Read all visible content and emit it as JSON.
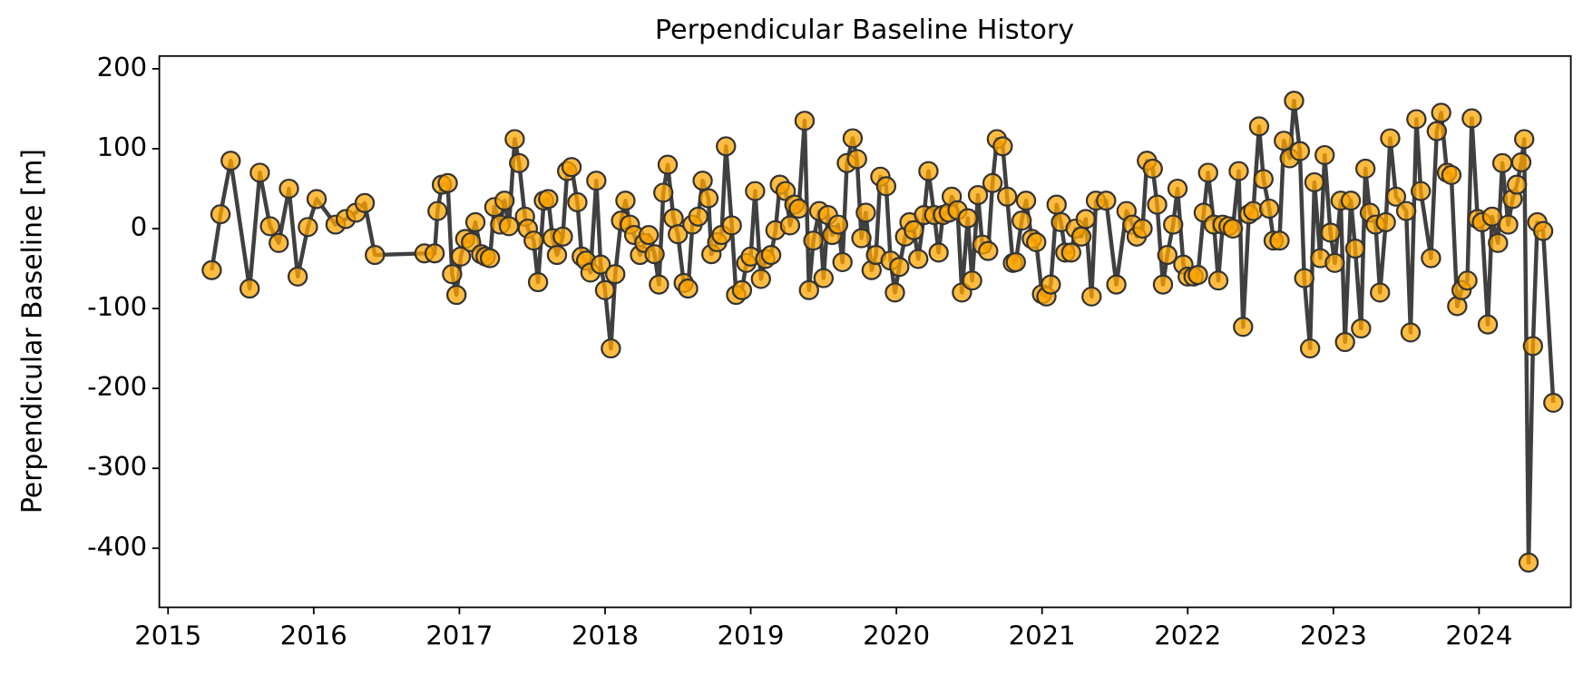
{
  "chart_data": {
    "type": "line",
    "title": "Perpendicular Baseline History",
    "ylabel": "Perpendicular Baseline [m]",
    "line_color": "#404040",
    "marker_color": "#ffa500",
    "marker_edge_color": "#333333",
    "xlim": [
      2014.94,
      2024.63
    ],
    "xticks": [
      2015,
      2016,
      2017,
      2018,
      2019,
      2020,
      2021,
      2022,
      2023,
      2024
    ],
    "ylim": [
      -474,
      216
    ],
    "yticks": [
      -400,
      -300,
      -200,
      -100,
      0,
      100,
      200
    ],
    "x": [
      2015.3,
      2015.36,
      2015.43,
      2015.56,
      2015.63,
      2015.7,
      2015.76,
      2015.83,
      2015.89,
      2015.96,
      2016.02,
      2016.15,
      2016.22,
      2016.29,
      2016.35,
      2016.42,
      2016.76,
      2016.83,
      2016.85,
      2016.88,
      2016.92,
      2016.95,
      2016.98,
      2017.01,
      2017.04,
      2017.08,
      2017.11,
      2017.15,
      2017.18,
      2017.21,
      2017.24,
      2017.28,
      2017.31,
      2017.34,
      2017.38,
      2017.41,
      2017.45,
      2017.47,
      2017.51,
      2017.54,
      2017.58,
      2017.61,
      2017.64,
      2017.67,
      2017.71,
      2017.74,
      2017.77,
      2017.81,
      2017.84,
      2017.87,
      2017.9,
      2017.94,
      2017.97,
      2018.0,
      2018.04,
      2018.07,
      2018.11,
      2018.14,
      2018.17,
      2018.2,
      2018.24,
      2018.27,
      2018.3,
      2018.34,
      2018.37,
      2018.4,
      2018.43,
      2018.47,
      2018.5,
      2018.54,
      2018.57,
      2018.6,
      2018.64,
      2018.67,
      2018.71,
      2018.73,
      2018.77,
      2018.8,
      2018.83,
      2018.87,
      2018.9,
      2018.94,
      2018.97,
      2019.0,
      2019.03,
      2019.07,
      2019.1,
      2019.14,
      2019.17,
      2019.2,
      2019.24,
      2019.27,
      2019.3,
      2019.33,
      2019.37,
      2019.4,
      2019.43,
      2019.47,
      2019.5,
      2019.53,
      2019.56,
      2019.6,
      2019.63,
      2019.66,
      2019.7,
      2019.73,
      2019.76,
      2019.79,
      2019.83,
      2019.86,
      2019.89,
      2019.93,
      2019.96,
      2019.99,
      2020.02,
      2020.06,
      2020.09,
      2020.12,
      2020.15,
      2020.19,
      2020.22,
      2020.26,
      2020.29,
      2020.32,
      2020.36,
      2020.38,
      2020.42,
      2020.45,
      2020.49,
      2020.52,
      2020.56,
      2020.59,
      2020.63,
      2020.66,
      2020.69,
      2020.73,
      2020.76,
      2020.8,
      2020.82,
      2020.86,
      2020.89,
      2020.93,
      2020.96,
      2021.0,
      2021.03,
      2021.06,
      2021.1,
      2021.13,
      2021.16,
      2021.2,
      2021.23,
      2021.27,
      2021.3,
      2021.34,
      2021.37,
      2021.44,
      2021.51,
      2021.58,
      2021.62,
      2021.65,
      2021.69,
      2021.72,
      2021.76,
      2021.79,
      2021.83,
      2021.86,
      2021.9,
      2021.93,
      2021.97,
      2022.0,
      2022.04,
      2022.07,
      2022.11,
      2022.14,
      2022.18,
      2022.21,
      2022.24,
      2022.28,
      2022.31,
      2022.35,
      2022.38,
      2022.42,
      2022.45,
      2022.49,
      2022.52,
      2022.56,
      2022.59,
      2022.63,
      2022.66,
      2022.7,
      2022.73,
      2022.77,
      2022.8,
      2022.84,
      2022.87,
      2022.91,
      2022.94,
      2022.98,
      2023.01,
      2023.05,
      2023.08,
      2023.12,
      2023.15,
      2023.19,
      2023.22,
      2023.25,
      2023.29,
      2023.32,
      2023.36,
      2023.39,
      2023.43,
      2023.5,
      2023.53,
      2023.57,
      2023.6,
      2023.67,
      2023.71,
      2023.74,
      2023.78,
      2023.81,
      2023.85,
      2023.88,
      2023.92,
      2023.95,
      2023.99,
      2024.02,
      2024.06,
      2024.09,
      2024.13,
      2024.16,
      2024.2,
      2024.23,
      2024.26,
      2024.29,
      2024.31,
      2024.34,
      2024.37,
      2024.4,
      2024.44,
      2024.51
    ],
    "values": [
      -52,
      18,
      85,
      -75,
      70,
      3,
      -18,
      50,
      -60,
      2,
      37,
      5,
      12,
      20,
      32,
      -33,
      -31,
      -31,
      22,
      55,
      57,
      -57,
      -83,
      -35,
      -13,
      -17,
      8,
      -32,
      -35,
      -37,
      27,
      5,
      35,
      3,
      112,
      82,
      15,
      0,
      -15,
      -67,
      35,
      37,
      -12,
      -33,
      -10,
      72,
      77,
      33,
      -35,
      -40,
      -55,
      60,
      -45,
      -77,
      -150,
      -57,
      10,
      35,
      5,
      -8,
      -33,
      -18,
      -8,
      -32,
      -70,
      45,
      80,
      13,
      -7,
      -68,
      -75,
      5,
      15,
      60,
      38,
      -32,
      -17,
      -8,
      103,
      4,
      -83,
      -77,
      -43,
      -35,
      47,
      -63,
      -38,
      -33,
      -2,
      55,
      47,
      4,
      30,
      25,
      135,
      -77,
      -15,
      22,
      -62,
      17,
      -8,
      5,
      -42,
      82,
      113,
      87,
      -12,
      20,
      -52,
      -33,
      65,
      53,
      -40,
      -80,
      -48,
      -10,
      8,
      -2,
      -38,
      17,
      72,
      17,
      -30,
      17,
      20,
      40,
      23,
      -80,
      13,
      -65,
      42,
      -20,
      -28,
      57,
      112,
      103,
      40,
      -43,
      -42,
      10,
      35,
      -13,
      -17,
      -82,
      -85,
      -70,
      30,
      8,
      -30,
      -30,
      0,
      -10,
      12,
      -85,
      35,
      35,
      -70,
      22,
      5,
      -10,
      0,
      85,
      75,
      30,
      -70,
      -33,
      5,
      50,
      -45,
      -60,
      -60,
      -58,
      20,
      70,
      5,
      -65,
      5,
      3,
      0,
      72,
      -123,
      18,
      22,
      128,
      62,
      25,
      -15,
      -15,
      110,
      88,
      160,
      97,
      -62,
      -150,
      58,
      -37,
      92,
      -5,
      -43,
      35,
      -142,
      35,
      -25,
      -125,
      75,
      20,
      5,
      -80,
      8,
      113,
      40,
      22,
      -130,
      137,
      47,
      -37,
      122,
      145,
      70,
      67,
      -97,
      -77,
      -65,
      138,
      12,
      8,
      -120,
      15,
      -18,
      82,
      5,
      37,
      55,
      83,
      112,
      -418,
      -147,
      8,
      -3,
      -218
    ]
  }
}
